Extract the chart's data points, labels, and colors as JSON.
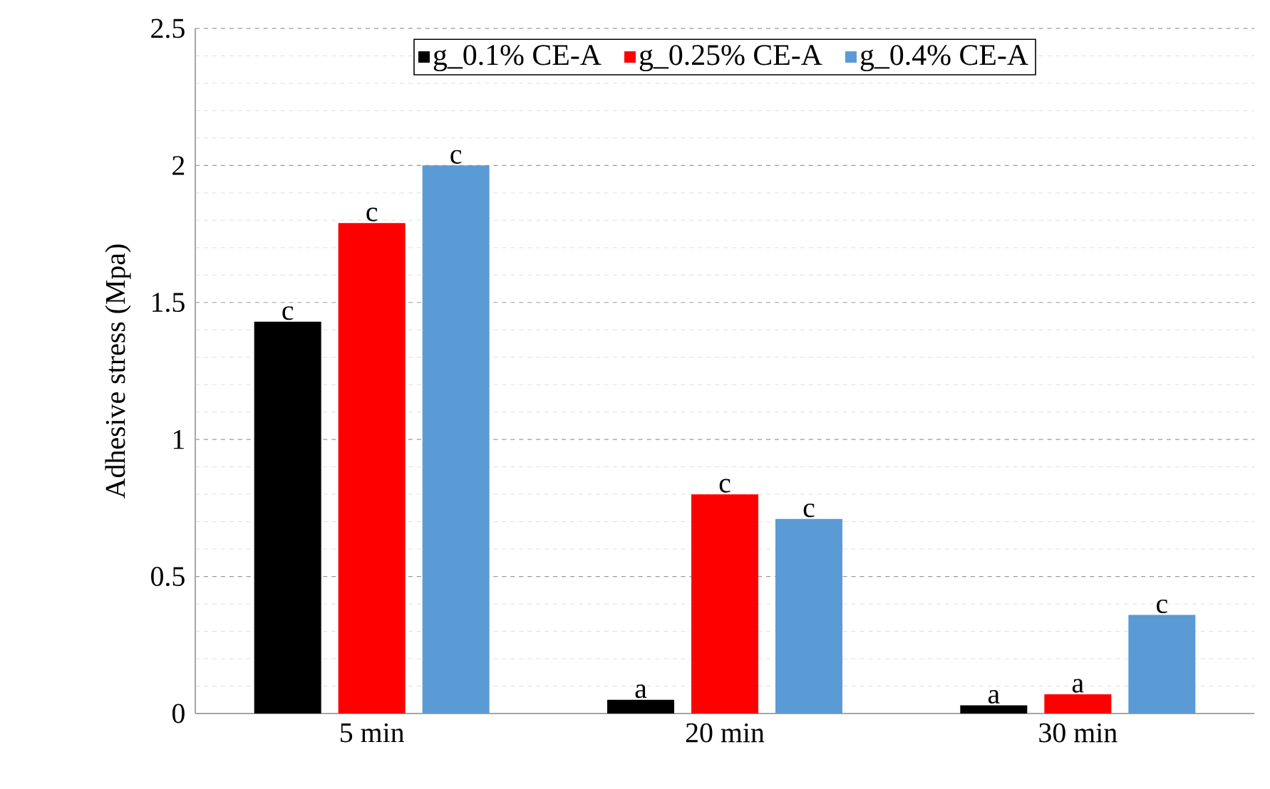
{
  "chart_data": {
    "type": "bar",
    "ylabel": "Adhesive stress (Mpa)",
    "categories": [
      "5 min",
      "20 min",
      "30 min"
    ],
    "series": [
      {
        "name": "g_0.1% CE-A",
        "color": "#000000",
        "values": [
          1.43,
          0.05,
          0.03
        ],
        "value_labels": [
          "c",
          "a",
          "a"
        ]
      },
      {
        "name": "g_0.25% CE-A",
        "color": "#ff0000",
        "values": [
          1.79,
          0.8,
          0.07
        ],
        "value_labels": [
          "c",
          "c",
          "a"
        ]
      },
      {
        "name": "g_0.4% CE-A",
        "color": "#5b9bd5",
        "values": [
          2.0,
          0.71,
          0.36
        ],
        "value_labels": [
          "c",
          "c",
          "c"
        ]
      }
    ],
    "ylim": [
      0,
      2.5
    ],
    "yticks": [
      0,
      0.5,
      1,
      1.5,
      2,
      2.5
    ],
    "grid": "y",
    "legend": "top"
  }
}
